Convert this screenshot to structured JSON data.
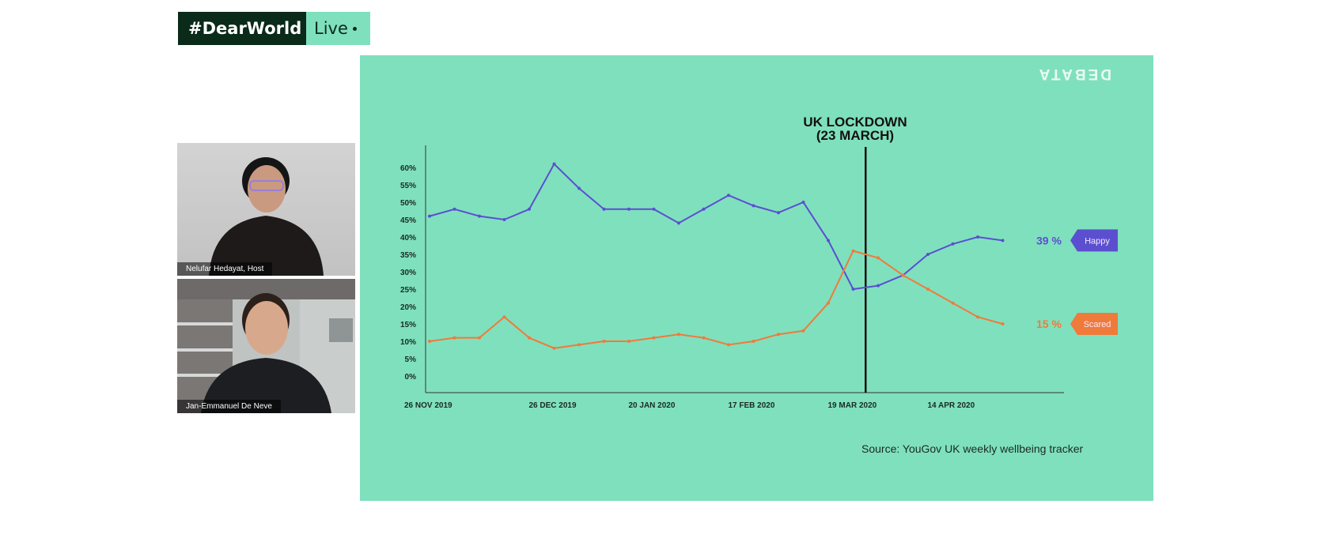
{
  "brand": {
    "title": "#DearWorld",
    "live": "Live"
  },
  "participants": [
    {
      "name": "Nelufar Hedayat, Host"
    },
    {
      "name": "Jan-Emmanuel De Neve"
    }
  ],
  "slide": {
    "annotation_line1": "UK LOCKDOWN",
    "annotation_line2": "(23 MARCH)",
    "source": "Source: YouGov UK weekly wellbeing tracker",
    "watermark": "DEBATA"
  },
  "colors": {
    "background": "#7fe0be",
    "happy": "#5b4fd0",
    "scared": "#f07a3a"
  },
  "chart_data": {
    "type": "line",
    "y_ticks": [
      "60%",
      "55%",
      "50%",
      "45%",
      "40%",
      "35%",
      "30%",
      "25%",
      "20%",
      "15%",
      "10%",
      "5%",
      "0%"
    ],
    "ylim": [
      0,
      60
    ],
    "x_labels": [
      "26 NOV 2019",
      "26 DEC 2019",
      "20 JAN 2020",
      "17 FEB 2020",
      "19 MAR 2020",
      "14 APR 2020"
    ],
    "points": 24,
    "x_label_index": [
      0,
      5,
      9,
      13,
      17,
      21
    ],
    "lockdown_index": 17.5,
    "series": [
      {
        "name": "Happy",
        "end_label": "39 %",
        "color": "#5b4fd0",
        "values": [
          46,
          48,
          46,
          45,
          48,
          61,
          54,
          48,
          48,
          48,
          44,
          48,
          52,
          49,
          47,
          50,
          39,
          25,
          26,
          29,
          35,
          38,
          40,
          39
        ]
      },
      {
        "name": "Scared",
        "end_label": "15 %",
        "color": "#f07a3a",
        "values": [
          10,
          11,
          11,
          17,
          11,
          8,
          9,
          10,
          10,
          11,
          12,
          11,
          9,
          10,
          12,
          13,
          21,
          36,
          34,
          29,
          25,
          21,
          17,
          15
        ]
      }
    ]
  }
}
